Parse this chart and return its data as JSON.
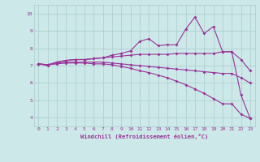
{
  "xlabel": "Windchill (Refroidissement éolien,°C)",
  "ylabel": "",
  "background_color": "#cce8e8",
  "grid_color": "#aacccc",
  "line_color": "#993399",
  "x_ticks": [
    0,
    1,
    2,
    3,
    4,
    5,
    6,
    7,
    8,
    9,
    10,
    11,
    12,
    13,
    14,
    15,
    16,
    17,
    18,
    19,
    20,
    21,
    22,
    23
  ],
  "y_ticks": [
    4,
    5,
    6,
    7,
    8,
    9,
    10
  ],
  "ylim": [
    3.5,
    10.5
  ],
  "xlim": [
    -0.5,
    23.5
  ],
  "line1_y": [
    7.1,
    7.0,
    7.2,
    7.3,
    7.35,
    7.35,
    7.4,
    7.45,
    7.6,
    7.7,
    7.85,
    8.4,
    8.55,
    8.15,
    8.2,
    8.2,
    9.1,
    9.8,
    8.85,
    9.25,
    7.8,
    7.8,
    5.3,
    3.95
  ],
  "line2_y": [
    7.1,
    7.05,
    7.2,
    7.3,
    7.35,
    7.35,
    7.4,
    7.45,
    7.5,
    7.55,
    7.6,
    7.65,
    7.65,
    7.65,
    7.65,
    7.7,
    7.7,
    7.7,
    7.7,
    7.7,
    7.8,
    7.8,
    7.35,
    6.7
  ],
  "line3_y": [
    7.1,
    7.05,
    7.15,
    7.2,
    7.2,
    7.2,
    7.2,
    7.2,
    7.15,
    7.1,
    7.05,
    7.0,
    6.95,
    6.9,
    6.85,
    6.8,
    6.75,
    6.7,
    6.65,
    6.6,
    6.55,
    6.55,
    6.3,
    6.0
  ],
  "line4_y": [
    7.1,
    7.05,
    7.1,
    7.15,
    7.15,
    7.15,
    7.1,
    7.1,
    7.05,
    6.95,
    6.85,
    6.7,
    6.6,
    6.45,
    6.3,
    6.1,
    5.9,
    5.65,
    5.4,
    5.1,
    4.8,
    4.8,
    4.2,
    3.95
  ],
  "marker_size": 2.0,
  "line_width": 0.8,
  "xlabel_fontsize": 5.0,
  "tick_fontsize": 4.5
}
